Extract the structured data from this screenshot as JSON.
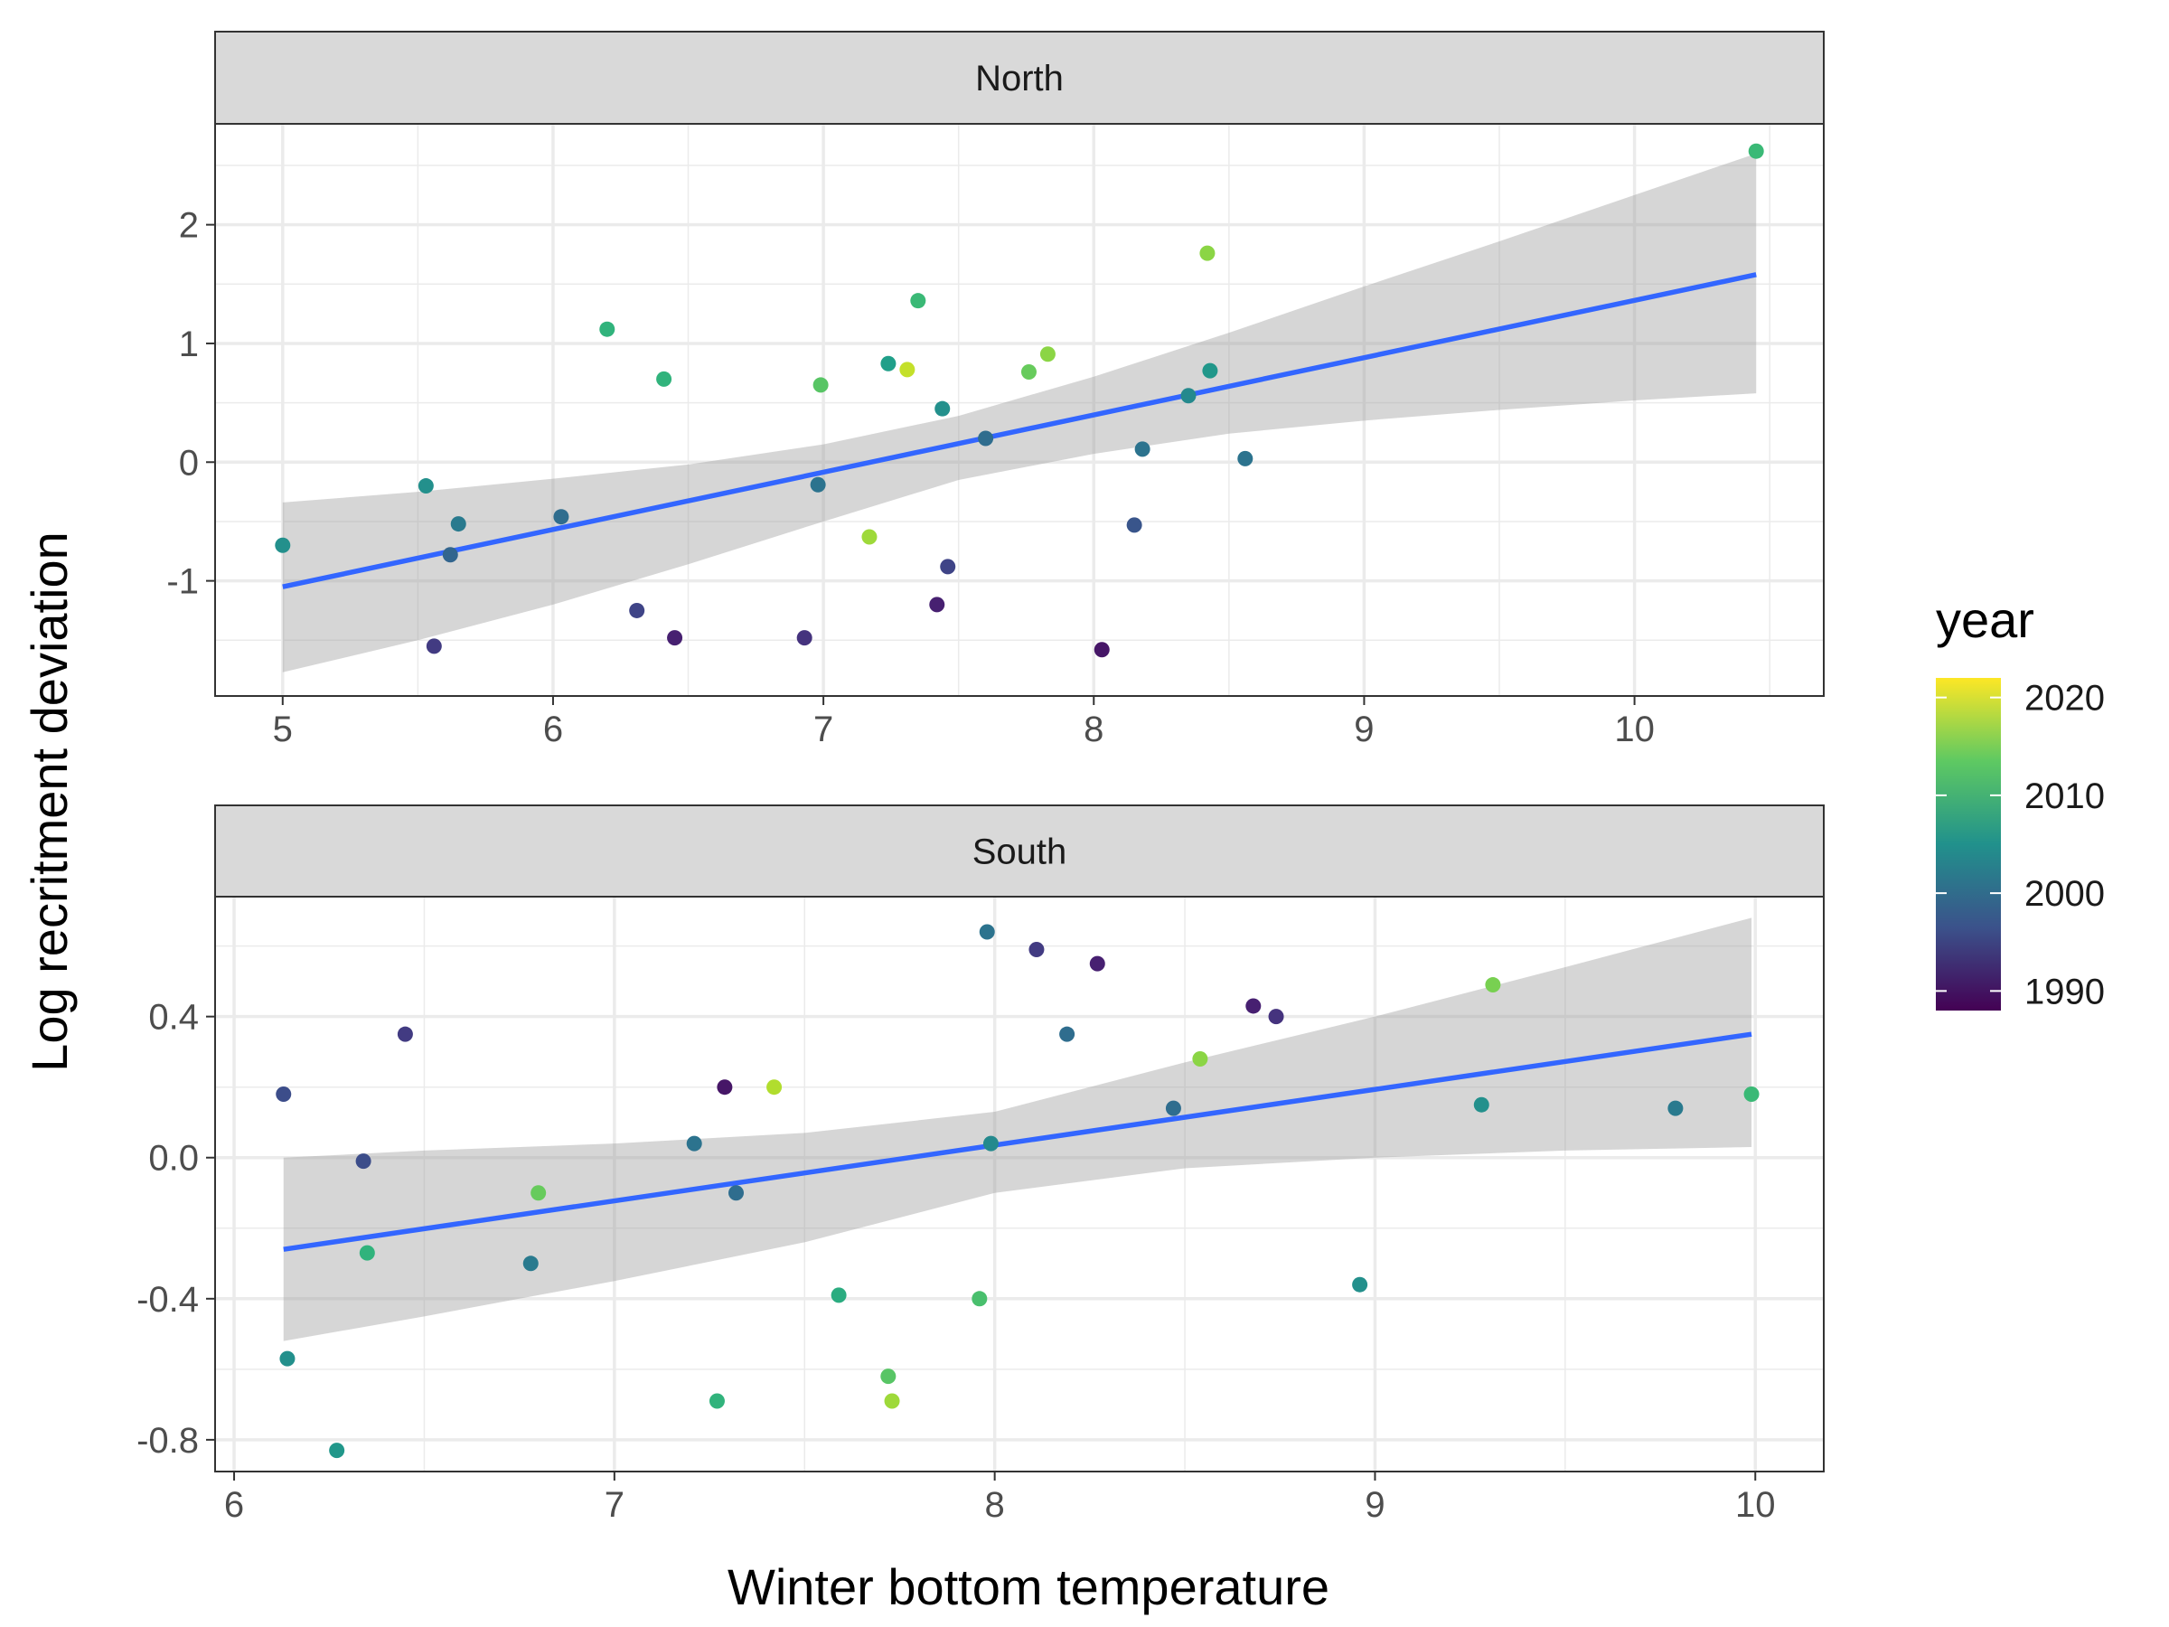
{
  "chart_data": {
    "type": "scatter",
    "xlabel": "Winter bottom temperature",
    "ylabel": "Log recritment deviation",
    "legend": {
      "title": "year",
      "ticks": [
        2020,
        2010,
        2000,
        1990
      ],
      "range": [
        1988,
        2022
      ],
      "placement": "right"
    },
    "grid": true,
    "fit_color": "#3366FF",
    "band_color": "#999999",
    "panels": [
      {
        "name": "North",
        "xlim": [
          4.75,
          10.7
        ],
        "ylim": [
          -1.97,
          2.85
        ],
        "xticks": [
          5,
          6,
          7,
          8,
          9,
          10
        ],
        "xtick_labels": [
          "5",
          "6",
          "7",
          "8",
          "9",
          "10"
        ],
        "yticks": [
          -1,
          0,
          1,
          2
        ],
        "ytick_labels": [
          "-1",
          "0",
          "1",
          "2"
        ],
        "fit": {
          "x0": 5.0,
          "y0": -1.05,
          "x1": 10.45,
          "y1": 1.58
        },
        "band": [
          {
            "x": 5.0,
            "lo": -1.77,
            "hi": -0.34
          },
          {
            "x": 5.5,
            "lo": -1.5,
            "hi": -0.25
          },
          {
            "x": 6.0,
            "lo": -1.2,
            "hi": -0.14
          },
          {
            "x": 6.5,
            "lo": -0.86,
            "hi": -0.02
          },
          {
            "x": 7.0,
            "lo": -0.5,
            "hi": 0.15
          },
          {
            "x": 7.5,
            "lo": -0.15,
            "hi": 0.39
          },
          {
            "x": 8.0,
            "lo": 0.07,
            "hi": 0.72
          },
          {
            "x": 8.5,
            "lo": 0.24,
            "hi": 1.09
          },
          {
            "x": 9.0,
            "lo": 0.35,
            "hi": 1.48
          },
          {
            "x": 9.5,
            "lo": 0.44,
            "hi": 1.86
          },
          {
            "x": 10.0,
            "lo": 0.52,
            "hi": 2.25
          },
          {
            "x": 10.45,
            "lo": 0.58,
            "hi": 2.6
          }
        ],
        "points": [
          {
            "x": 5.0,
            "y": -0.7,
            "year": 2005
          },
          {
            "x": 5.53,
            "y": -0.2,
            "year": 2005
          },
          {
            "x": 5.56,
            "y": -1.55,
            "year": 1994
          },
          {
            "x": 5.62,
            "y": -0.78,
            "year": 1999
          },
          {
            "x": 5.65,
            "y": -0.52,
            "year": 2002
          },
          {
            "x": 6.03,
            "y": -0.46,
            "year": 2000
          },
          {
            "x": 6.2,
            "y": 1.12,
            "year": 2010
          },
          {
            "x": 6.31,
            "y": -1.25,
            "year": 1995
          },
          {
            "x": 6.41,
            "y": 0.7,
            "year": 2010
          },
          {
            "x": 6.45,
            "y": -1.48,
            "year": 1991
          },
          {
            "x": 6.93,
            "y": -1.48,
            "year": 1993
          },
          {
            "x": 6.98,
            "y": -0.19,
            "year": 2001
          },
          {
            "x": 6.99,
            "y": 0.65,
            "year": 2013
          },
          {
            "x": 7.17,
            "y": -0.63,
            "year": 2017
          },
          {
            "x": 7.24,
            "y": 0.83,
            "year": 2007
          },
          {
            "x": 7.31,
            "y": 0.78,
            "year": 2019
          },
          {
            "x": 7.35,
            "y": 1.36,
            "year": 2011
          },
          {
            "x": 7.42,
            "y": -1.2,
            "year": 1991
          },
          {
            "x": 7.44,
            "y": 0.45,
            "year": 2005
          },
          {
            "x": 7.46,
            "y": -0.88,
            "year": 1995
          },
          {
            "x": 7.6,
            "y": 0.2,
            "year": 2000
          },
          {
            "x": 7.76,
            "y": 0.76,
            "year": 2014
          },
          {
            "x": 7.83,
            "y": 0.91,
            "year": 2016
          },
          {
            "x": 8.03,
            "y": -1.58,
            "year": 1990
          },
          {
            "x": 8.15,
            "y": -0.53,
            "year": 1997
          },
          {
            "x": 8.18,
            "y": 0.11,
            "year": 2001
          },
          {
            "x": 8.35,
            "y": 0.56,
            "year": 2004
          },
          {
            "x": 8.42,
            "y": 1.76,
            "year": 2016
          },
          {
            "x": 8.43,
            "y": 0.77,
            "year": 2006
          },
          {
            "x": 8.56,
            "y": 0.03,
            "year": 2001
          },
          {
            "x": 10.45,
            "y": 2.62,
            "year": 2011
          }
        ]
      },
      {
        "name": "South",
        "xlim": [
          5.95,
          10.18
        ],
        "ylim": [
          -0.89,
          0.74
        ],
        "xticks": [
          6,
          7,
          8,
          9,
          10
        ],
        "xtick_labels": [
          "6",
          "7",
          "8",
          "9",
          "10"
        ],
        "yticks": [
          -0.8,
          -0.4,
          0.0,
          0.4
        ],
        "ytick_labels": [
          "-0.8",
          "-0.4",
          "0.0",
          "0.4"
        ],
        "fit": {
          "x0": 6.13,
          "y0": -0.26,
          "x1": 9.99,
          "y1": 0.35
        },
        "band": [
          {
            "x": 6.13,
            "lo": -0.52,
            "hi": 0.0
          },
          {
            "x": 6.5,
            "lo": -0.45,
            "hi": 0.02
          },
          {
            "x": 7.0,
            "lo": -0.35,
            "hi": 0.04
          },
          {
            "x": 7.5,
            "lo": -0.24,
            "hi": 0.07
          },
          {
            "x": 8.0,
            "lo": -0.1,
            "hi": 0.13
          },
          {
            "x": 8.5,
            "lo": -0.03,
            "hi": 0.27
          },
          {
            "x": 9.0,
            "lo": 0.0,
            "hi": 0.4
          },
          {
            "x": 9.5,
            "lo": 0.02,
            "hi": 0.54
          },
          {
            "x": 9.99,
            "lo": 0.03,
            "hi": 0.68
          }
        ],
        "points": [
          {
            "x": 6.13,
            "y": 0.18,
            "year": 1996
          },
          {
            "x": 6.14,
            "y": -0.57,
            "year": 2005
          },
          {
            "x": 6.27,
            "y": -0.83,
            "year": 2006
          },
          {
            "x": 6.34,
            "y": -0.01,
            "year": 1996
          },
          {
            "x": 6.35,
            "y": -0.27,
            "year": 2010
          },
          {
            "x": 6.45,
            "y": 0.35,
            "year": 1994
          },
          {
            "x": 6.78,
            "y": -0.3,
            "year": 2002
          },
          {
            "x": 6.8,
            "y": -0.1,
            "year": 2014
          },
          {
            "x": 7.21,
            "y": 0.04,
            "year": 2001
          },
          {
            "x": 7.27,
            "y": -0.69,
            "year": 2010
          },
          {
            "x": 7.29,
            "y": 0.2,
            "year": 1990
          },
          {
            "x": 7.32,
            "y": -0.1,
            "year": 2000
          },
          {
            "x": 7.42,
            "y": 0.2,
            "year": 2018
          },
          {
            "x": 7.59,
            "y": -0.39,
            "year": 2009
          },
          {
            "x": 7.72,
            "y": -0.62,
            "year": 2013
          },
          {
            "x": 7.73,
            "y": -0.69,
            "year": 2017
          },
          {
            "x": 7.96,
            "y": -0.4,
            "year": 2012
          },
          {
            "x": 7.98,
            "y": 0.64,
            "year": 2001
          },
          {
            "x": 7.99,
            "y": 0.04,
            "year": 2004
          },
          {
            "x": 8.11,
            "y": 0.59,
            "year": 1994
          },
          {
            "x": 8.19,
            "y": 0.35,
            "year": 2000
          },
          {
            "x": 8.27,
            "y": 0.55,
            "year": 1991
          },
          {
            "x": 8.47,
            "y": 0.14,
            "year": 2000
          },
          {
            "x": 8.54,
            "y": 0.28,
            "year": 2016
          },
          {
            "x": 8.68,
            "y": 0.43,
            "year": 1991
          },
          {
            "x": 8.74,
            "y": 0.4,
            "year": 1993
          },
          {
            "x": 8.96,
            "y": -0.36,
            "year": 2005
          },
          {
            "x": 9.28,
            "y": 0.15,
            "year": 2005
          },
          {
            "x": 9.31,
            "y": 0.49,
            "year": 2015
          },
          {
            "x": 9.79,
            "y": 0.14,
            "year": 2002
          },
          {
            "x": 9.99,
            "y": 0.18,
            "year": 2011
          }
        ]
      }
    ]
  }
}
